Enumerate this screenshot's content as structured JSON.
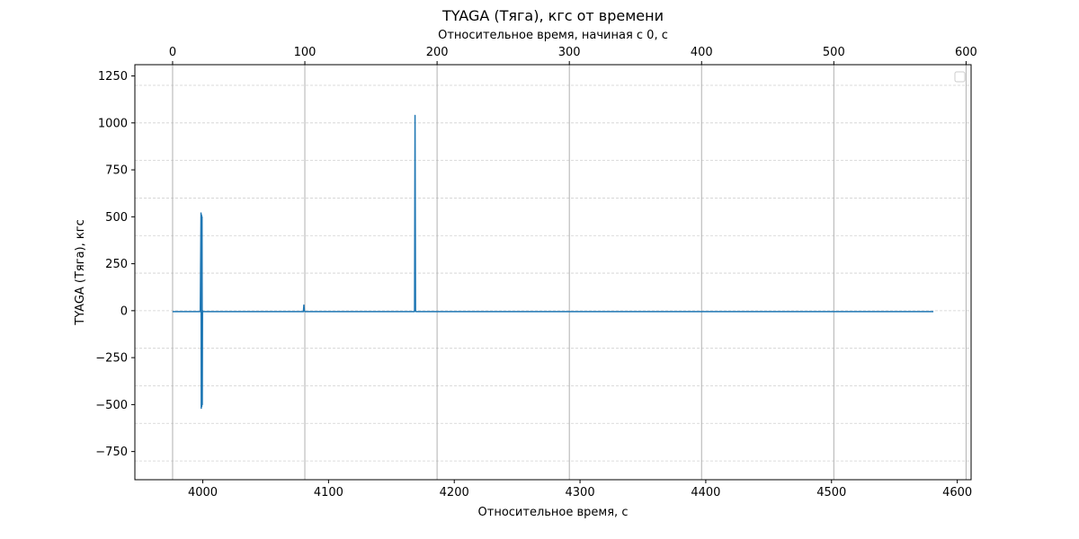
{
  "chart_data": {
    "type": "line",
    "title": "TYAGA (Тяга), кгс от времени",
    "xlabel": "Относительное время, с",
    "ylabel": "TYAGA (Тяга), кгс",
    "x2label": "Относительное время, начиная с 0, с",
    "xlim": [
      3946,
      4611
    ],
    "ylim": [
      -900,
      1310
    ],
    "x2lim": [
      0,
      600
    ],
    "xticks": [
      4000,
      4100,
      4200,
      4300,
      4400,
      4500,
      4600
    ],
    "yticks": [
      -750,
      -500,
      -250,
      0,
      250,
      500,
      750,
      1000,
      1250
    ],
    "x2ticks": [
      0,
      100,
      200,
      300,
      400,
      500,
      600
    ],
    "xtick_labels": [
      "4000",
      "4100",
      "4200",
      "4300",
      "4400",
      "4500",
      "4600"
    ],
    "ytick_labels": [
      "−750",
      "−500",
      "−250",
      "0",
      "250",
      "500",
      "750",
      "1000",
      "1250"
    ],
    "x2tick_labels": [
      "0",
      "100",
      "200",
      "300",
      "400",
      "500",
      "600"
    ],
    "grid": true,
    "legend": "top-right (empty)",
    "color": "#1f77b4",
    "series": [
      {
        "x": [
          3976,
          3998,
          3998.6,
          3998.8,
          3999.0,
          3999.2,
          3999.4,
          3999.6,
          3999.8,
          4000.2,
          4080.0,
          4080.4,
          4080.8,
          4081.2,
          4168.4,
          4168.8,
          4169.2,
          4169.6,
          4581
        ],
        "y": [
          -5,
          -5,
          520,
          -520,
          510,
          -510,
          500,
          -500,
          0,
          -5,
          -5,
          30,
          0,
          -5,
          -5,
          1040,
          0,
          -5,
          -5
        ]
      }
    ]
  }
}
